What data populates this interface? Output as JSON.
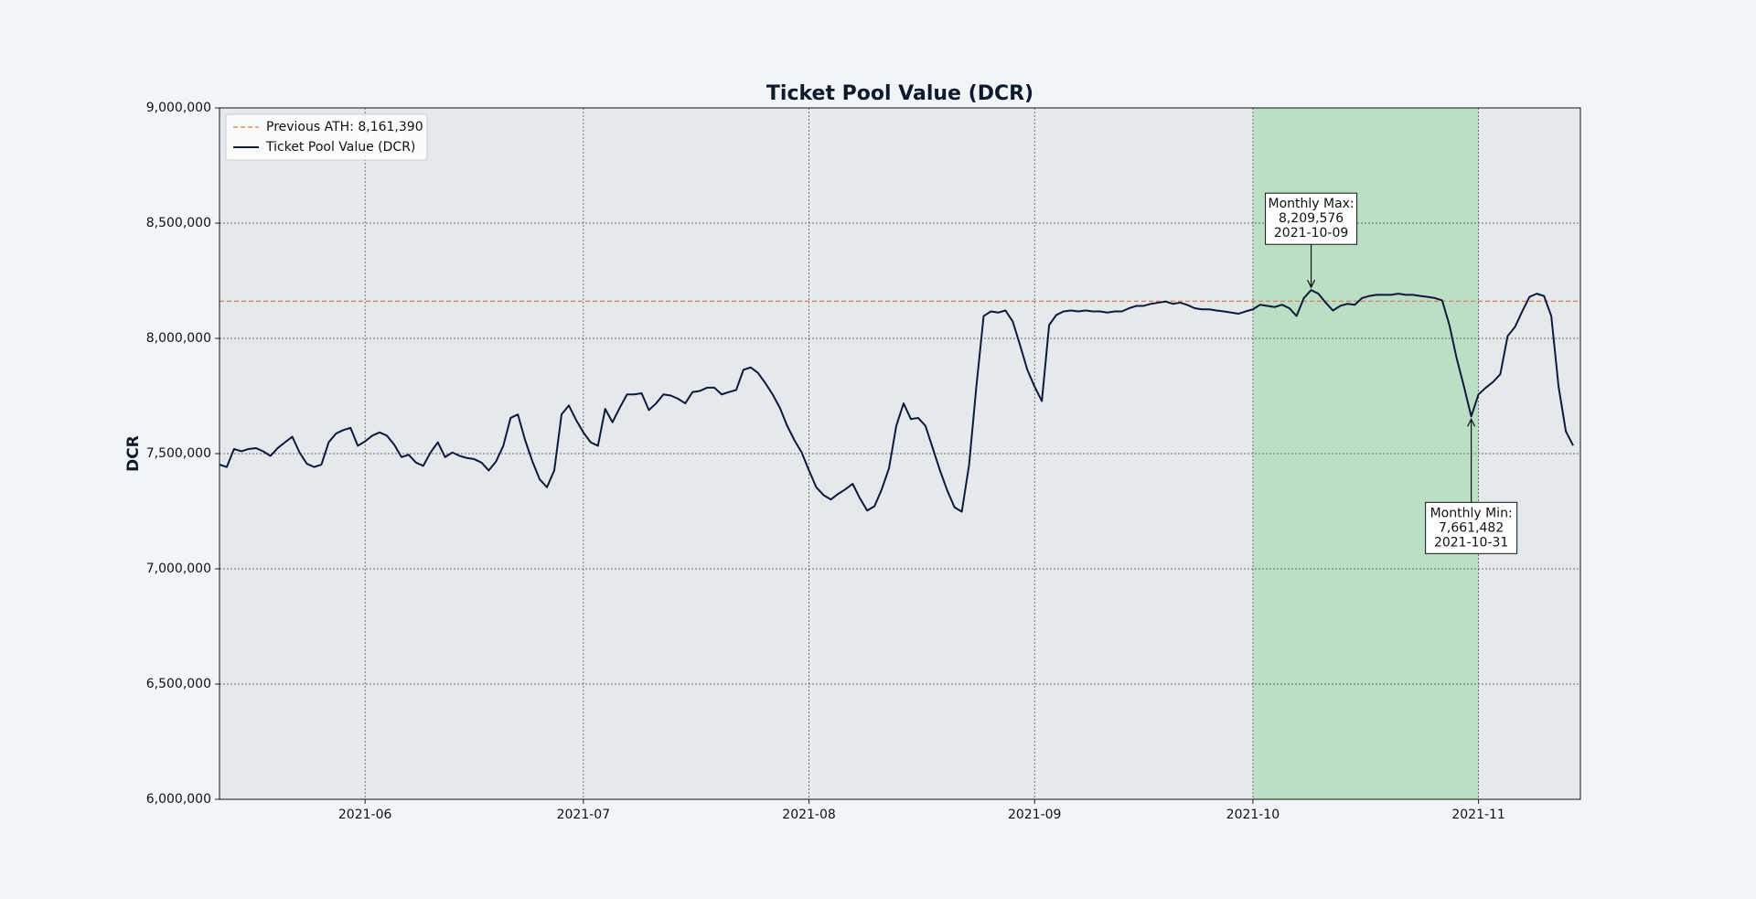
{
  "chart_data": {
    "type": "line",
    "title": "Ticket Pool Value (DCR)",
    "y_label": "DCR",
    "x": [
      "2021-05-12",
      "2021-05-13",
      "2021-05-14",
      "2021-05-15",
      "2021-05-16",
      "2021-05-17",
      "2021-05-18",
      "2021-05-19",
      "2021-05-20",
      "2021-05-21",
      "2021-05-22",
      "2021-05-23",
      "2021-05-24",
      "2021-05-25",
      "2021-05-26",
      "2021-05-27",
      "2021-05-28",
      "2021-05-29",
      "2021-05-30",
      "2021-05-31",
      "2021-06-01",
      "2021-06-02",
      "2021-06-03",
      "2021-06-04",
      "2021-06-05",
      "2021-06-06",
      "2021-06-07",
      "2021-06-08",
      "2021-06-09",
      "2021-06-10",
      "2021-06-11",
      "2021-06-12",
      "2021-06-13",
      "2021-06-14",
      "2021-06-15",
      "2021-06-16",
      "2021-06-17",
      "2021-06-18",
      "2021-06-19",
      "2021-06-20",
      "2021-06-21",
      "2021-06-22",
      "2021-06-23",
      "2021-06-24",
      "2021-06-25",
      "2021-06-26",
      "2021-06-27",
      "2021-06-28",
      "2021-06-29",
      "2021-06-30",
      "2021-07-01",
      "2021-07-02",
      "2021-07-03",
      "2021-07-04",
      "2021-07-05",
      "2021-07-06",
      "2021-07-07",
      "2021-07-08",
      "2021-07-09",
      "2021-07-10",
      "2021-07-11",
      "2021-07-12",
      "2021-07-13",
      "2021-07-14",
      "2021-07-15",
      "2021-07-16",
      "2021-07-17",
      "2021-07-18",
      "2021-07-19",
      "2021-07-20",
      "2021-07-21",
      "2021-07-22",
      "2021-07-23",
      "2021-07-24",
      "2021-07-25",
      "2021-07-26",
      "2021-07-27",
      "2021-07-28",
      "2021-07-29",
      "2021-07-30",
      "2021-07-31",
      "2021-08-01",
      "2021-08-02",
      "2021-08-03",
      "2021-08-04",
      "2021-08-05",
      "2021-08-06",
      "2021-08-07",
      "2021-08-08",
      "2021-08-09",
      "2021-08-10",
      "2021-08-11",
      "2021-08-12",
      "2021-08-13",
      "2021-08-14",
      "2021-08-15",
      "2021-08-16",
      "2021-08-17",
      "2021-08-18",
      "2021-08-19",
      "2021-08-20",
      "2021-08-21",
      "2021-08-22",
      "2021-08-23",
      "2021-08-24",
      "2021-08-25",
      "2021-08-26",
      "2021-08-27",
      "2021-08-28",
      "2021-08-29",
      "2021-08-30",
      "2021-08-31",
      "2021-09-01",
      "2021-09-02",
      "2021-09-03",
      "2021-09-04",
      "2021-09-05",
      "2021-09-06",
      "2021-09-07",
      "2021-09-08",
      "2021-09-09",
      "2021-09-10",
      "2021-09-11",
      "2021-09-12",
      "2021-09-13",
      "2021-09-14",
      "2021-09-15",
      "2021-09-16",
      "2021-09-17",
      "2021-09-18",
      "2021-09-19",
      "2021-09-20",
      "2021-09-21",
      "2021-09-22",
      "2021-09-23",
      "2021-09-24",
      "2021-09-25",
      "2021-09-26",
      "2021-09-27",
      "2021-09-28",
      "2021-09-29",
      "2021-09-30",
      "2021-10-01",
      "2021-10-02",
      "2021-10-03",
      "2021-10-04",
      "2021-10-05",
      "2021-10-06",
      "2021-10-07",
      "2021-10-08",
      "2021-10-09",
      "2021-10-10",
      "2021-10-11",
      "2021-10-12",
      "2021-10-13",
      "2021-10-14",
      "2021-10-15",
      "2021-10-16",
      "2021-10-17",
      "2021-10-18",
      "2021-10-19",
      "2021-10-20",
      "2021-10-21",
      "2021-10-22",
      "2021-10-23",
      "2021-10-24",
      "2021-10-25",
      "2021-10-26",
      "2021-10-27",
      "2021-10-28",
      "2021-10-29",
      "2021-10-30",
      "2021-10-31",
      "2021-11-01",
      "2021-11-02",
      "2021-11-03",
      "2021-11-04",
      "2021-11-05",
      "2021-11-06",
      "2021-11-07",
      "2021-11-08",
      "2021-11-09",
      "2021-11-10",
      "2021-11-11",
      "2021-11-12",
      "2021-11-13",
      "2021-11-14"
    ],
    "series": [
      {
        "name": "Ticket Pool Value (DCR)",
        "color": "#0d1a3a",
        "values": [
          7452000,
          7442000,
          7520000,
          7510000,
          7520000,
          7524000,
          7510000,
          7490000,
          7524000,
          7549000,
          7573000,
          7505000,
          7456000,
          7442000,
          7452000,
          7549000,
          7587000,
          7602000,
          7612000,
          7534000,
          7553000,
          7578000,
          7592000,
          7578000,
          7539000,
          7485000,
          7495000,
          7461000,
          7447000,
          7505000,
          7549000,
          7485000,
          7505000,
          7490000,
          7481000,
          7476000,
          7461000,
          7427000,
          7466000,
          7534000,
          7655000,
          7670000,
          7558000,
          7466000,
          7388000,
          7354000,
          7427000,
          7670000,
          7709000,
          7646000,
          7592000,
          7549000,
          7534000,
          7694000,
          7636000,
          7699000,
          7757000,
          7757000,
          7762000,
          7689000,
          7718000,
          7757000,
          7752000,
          7738000,
          7718000,
          7767000,
          7772000,
          7786000,
          7786000,
          7757000,
          7767000,
          7776000,
          7864000,
          7874000,
          7850000,
          7806000,
          7757000,
          7699000,
          7621000,
          7558000,
          7505000,
          7427000,
          7354000,
          7320000,
          7301000,
          7325000,
          7345000,
          7369000,
          7306000,
          7253000,
          7272000,
          7345000,
          7437000,
          7621000,
          7718000,
          7650000,
          7655000,
          7621000,
          7524000,
          7427000,
          7340000,
          7267000,
          7248000,
          7451000,
          7791000,
          8097000,
          8117000,
          8112000,
          8121000,
          8073000,
          7971000,
          7864000,
          7791000,
          7728000,
          8058000,
          8102000,
          8117000,
          8121000,
          8117000,
          8121000,
          8117000,
          8117000,
          8112000,
          8117000,
          8117000,
          8131000,
          8141000,
          8141000,
          8150000,
          8155000,
          8160000,
          8150000,
          8155000,
          8145000,
          8131000,
          8126000,
          8126000,
          8121000,
          8117000,
          8112000,
          8107000,
          8117000,
          8126000,
          8146000,
          8141000,
          8136000,
          8146000,
          8131000,
          8097000,
          8175000,
          8209576,
          8194000,
          8155000,
          8121000,
          8141000,
          8150000,
          8146000,
          8175000,
          8184000,
          8189000,
          8189000,
          8189000,
          8194000,
          8189000,
          8189000,
          8184000,
          8180000,
          8175000,
          8165000,
          8058000,
          7913000,
          7791000,
          7661482,
          7757000,
          7786000,
          7811000,
          7845000,
          8010000,
          8049000,
          8117000,
          8180000,
          8194000,
          8184000,
          8097000,
          7791000,
          7597000,
          7535000
        ]
      }
    ],
    "reference_lines": [
      {
        "name": "Previous ATH: 8,161,390",
        "value": 8161390,
        "color": "#e0704f",
        "style": "dashed"
      }
    ],
    "highlight_span": [
      "2021-10-01",
      "2021-11-01"
    ],
    "highlight_color": "#bbdfc4",
    "annotations": [
      {
        "lines": [
          "Monthly Max:",
          "8,209,576",
          "2021-10-09"
        ],
        "x": "2021-10-09",
        "value": 8209576
      },
      {
        "lines": [
          "Monthly Min:",
          "7,661,482",
          "2021-10-31"
        ],
        "x": "2021-10-31",
        "value": 7661482
      }
    ],
    "xlim": [
      "2021-05-12",
      "2021-11-15"
    ],
    "xticks": [
      "2021-06",
      "2021-07",
      "2021-08",
      "2021-09",
      "2021-10",
      "2021-11"
    ],
    "ylim": [
      6000000,
      9000000
    ],
    "yticks": [
      {
        "value": 6000000,
        "label": "6,000,000"
      },
      {
        "value": 6500000,
        "label": "6,500,000"
      },
      {
        "value": 7000000,
        "label": "7,000,000"
      },
      {
        "value": 7500000,
        "label": "7,500,000"
      },
      {
        "value": 8000000,
        "label": "8,000,000"
      },
      {
        "value": 8500000,
        "label": "8,500,000"
      },
      {
        "value": 9000000,
        "label": "9,000,000"
      }
    ],
    "grid": true,
    "legend": "upper left"
  }
}
